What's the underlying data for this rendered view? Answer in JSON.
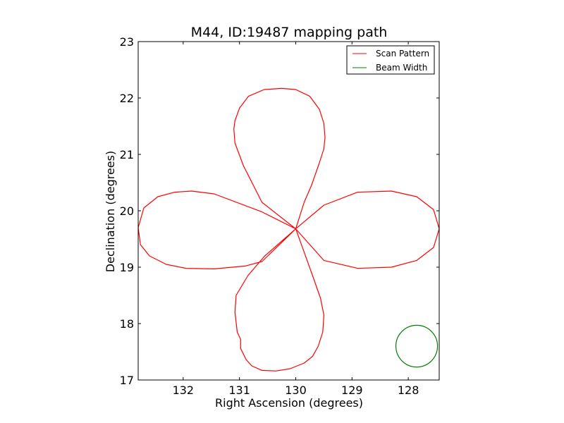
{
  "chart_data": {
    "type": "line",
    "title": "M44, ID:19487 mapping path",
    "xlabel": "Right Ascension (degrees)",
    "ylabel": "Declination (degrees)",
    "xlim": [
      132.8,
      127.45
    ],
    "ylim": [
      17,
      23
    ],
    "x_inverted": true,
    "grid": false,
    "legend_position": "top-right",
    "xticks": [
      132,
      131,
      130,
      129,
      128
    ],
    "yticks": [
      17,
      18,
      19,
      20,
      21,
      22,
      23
    ],
    "series": [
      {
        "name": "Scan Pattern",
        "color": "#ff0000",
        "x": [
          130.0,
          130.6,
          130.93,
          131.08,
          131.1,
          131.08,
          131.0,
          130.84,
          130.56,
          130.25,
          130.0,
          129.75,
          129.58,
          129.5,
          129.48,
          129.5,
          129.58,
          129.72,
          129.85,
          130.0,
          130.6,
          131.45,
          131.85,
          132.15,
          132.45,
          132.7,
          132.8,
          132.76,
          132.6,
          132.3,
          131.95,
          131.45,
          130.9,
          130.6,
          130.0,
          129.5,
          128.9,
          128.3,
          127.85,
          127.55,
          127.45,
          127.55,
          127.85,
          128.3,
          128.9,
          129.5,
          130.0,
          130.55,
          130.85,
          131.06,
          131.08,
          131.04,
          130.98,
          130.98,
          130.88,
          130.78,
          130.6,
          130.35,
          130.1,
          129.85,
          129.7,
          129.6,
          129.52,
          129.5,
          129.56,
          129.7,
          130.0
        ],
        "y": [
          19.68,
          20.15,
          20.8,
          21.2,
          21.45,
          21.6,
          21.82,
          22.03,
          22.15,
          22.17,
          22.15,
          22.03,
          21.8,
          21.55,
          21.3,
          21.1,
          20.85,
          20.45,
          20.15,
          19.68,
          19.98,
          20.3,
          20.35,
          20.33,
          20.25,
          20.05,
          19.7,
          19.4,
          19.2,
          19.05,
          18.98,
          18.97,
          19.02,
          19.1,
          19.68,
          20.1,
          20.33,
          20.35,
          20.25,
          20.02,
          19.68,
          19.35,
          19.12,
          19.0,
          18.98,
          19.12,
          19.68,
          19.2,
          18.85,
          18.5,
          18.2,
          17.85,
          17.72,
          17.56,
          17.36,
          17.25,
          17.17,
          17.16,
          17.2,
          17.3,
          17.42,
          17.6,
          17.85,
          18.15,
          18.45,
          18.85,
          19.68
        ]
      },
      {
        "name": "Beam Width",
        "color": "#007f00",
        "shape": "circle",
        "center": [
          127.85,
          17.6
        ],
        "radius": 0.37
      }
    ]
  }
}
